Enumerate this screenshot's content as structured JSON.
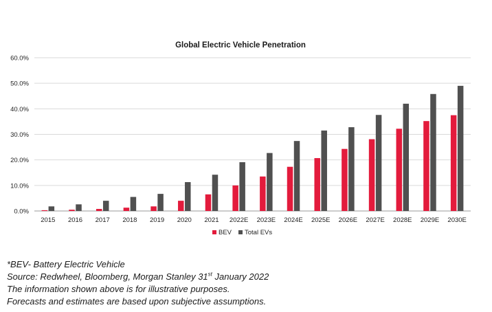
{
  "chart_data": {
    "type": "bar",
    "title": "Global Electric Vehicle Penetration",
    "categories": [
      "2015",
      "2016",
      "2017",
      "2018",
      "2019",
      "2020",
      "2021",
      "2022E",
      "2023E",
      "2024E",
      "2025E",
      "2026E",
      "2027E",
      "2028E",
      "2029E",
      "2030E"
    ],
    "series": [
      {
        "name": "BEV",
        "color": "#e31b3c",
        "values": [
          0.3,
          0.5,
          0.8,
          1.3,
          1.8,
          4.0,
          6.5,
          10.0,
          13.5,
          17.3,
          20.7,
          24.3,
          28.1,
          32.2,
          35.2,
          37.5
        ]
      },
      {
        "name": "Total EVs",
        "color": "#505050",
        "values": [
          1.8,
          2.6,
          4.0,
          5.5,
          6.7,
          11.3,
          14.2,
          19.1,
          22.7,
          27.4,
          31.5,
          32.8,
          37.6,
          42.0,
          45.8,
          49.0
        ]
      }
    ],
    "y_ticks": [
      "0.0%",
      "10.0%",
      "20.0%",
      "30.0%",
      "40.0%",
      "50.0%",
      "60.0%"
    ],
    "ylim": [
      0,
      60
    ],
    "grid": true,
    "legend_position": "bottom-center"
  },
  "notes": {
    "line1": "*BEV- Battery Electric Vehicle",
    "line2_main": "Source: Redwheel, Bloomberg, Morgan Stanley 31",
    "line2_sup": "st",
    "line2_tail": " January 2022",
    "line3": "The information shown above is for illustrative purposes.",
    "line4": "Forecasts and estimates are based upon subjective assumptions."
  }
}
